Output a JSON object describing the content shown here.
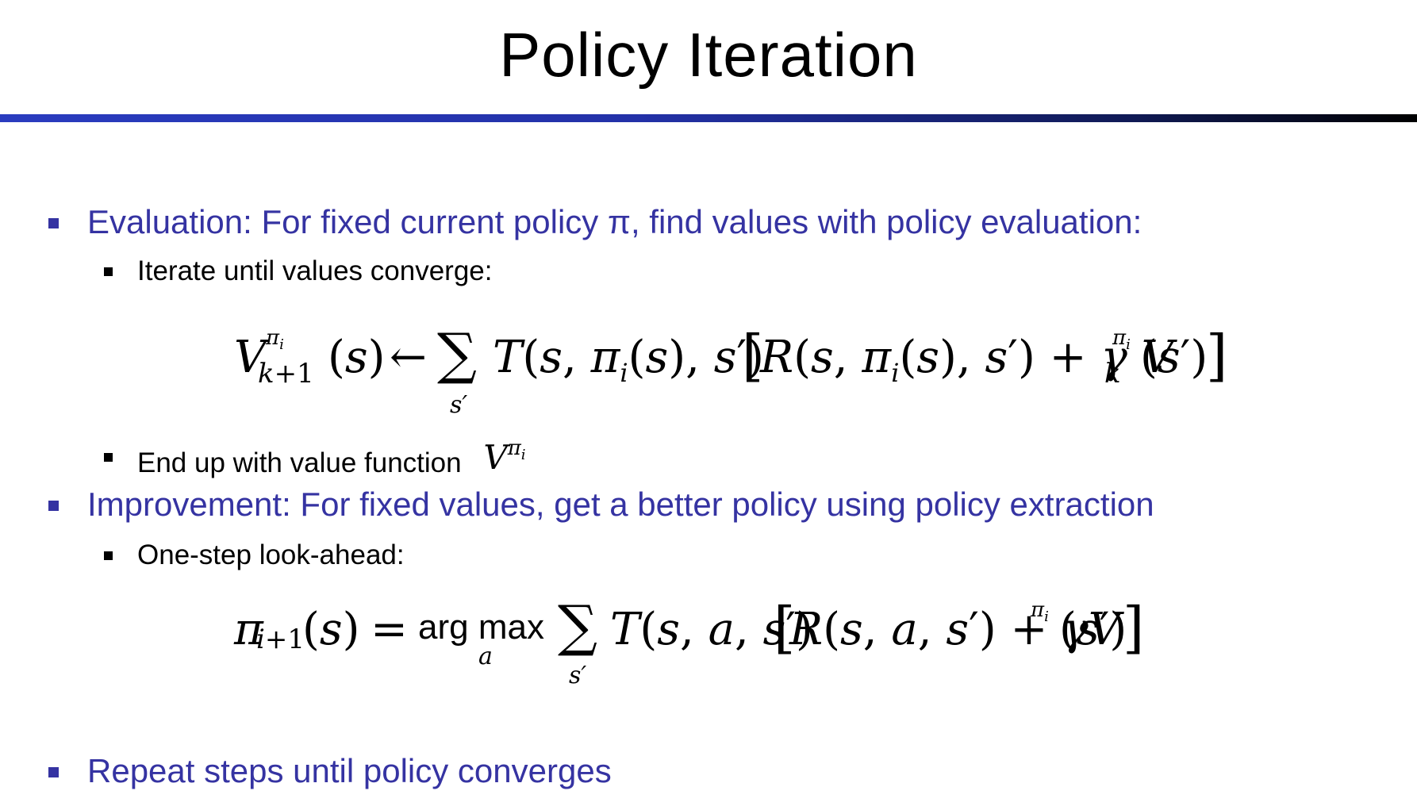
{
  "slide": {
    "title": "Policy Iteration",
    "bullets": {
      "evaluation": "Evaluation: For fixed current policy π, find values with policy evaluation:",
      "iterate": "Iterate until values converge:",
      "end_up": "End up with value function",
      "improvement": "Improvement: For fixed values, get a better policy using policy extraction",
      "one_step": "One-step look-ahead:",
      "repeat": "Repeat steps until policy converges"
    },
    "equations": {
      "evaluation_update": "V_{k+1}^{π_i}(s) ← Σ_{s'} T(s, π_i(s), s') [R(s, π_i(s), s') + γ V_k^{π_i}(s')]",
      "value_function": "V^{π_i}",
      "extraction": "π_{i+1}(s) = arg max_a Σ_{s'} T(s, a, s') [R(s, a, s') + γV^{π_i}(s')]"
    }
  },
  "colors": {
    "level1_text": "#3533a2",
    "level2_text": "#000000",
    "rule_start": "#2a3cbf",
    "rule_end": "#000000"
  }
}
